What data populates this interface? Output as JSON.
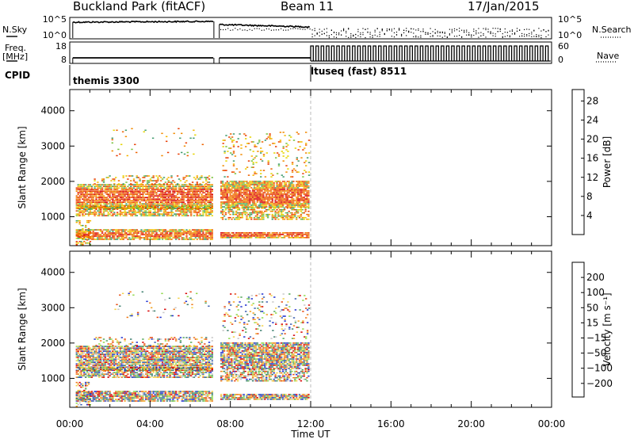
{
  "header": {
    "station": "Buckland Park (fitACF)",
    "beam": "Beam 11",
    "date": "17/Jan/2015"
  },
  "left_labels": {
    "nsky": "N.Sky",
    "freq_line1": "Freq.",
    "freq_line2": "[MHz]",
    "cpid": "CPID"
  },
  "right_labels": {
    "nsearch": "N.Search",
    "nave": "Nave"
  },
  "cpid_labels": [
    "themis 3300",
    "ltuseq (fast) 8511"
  ],
  "colors": {
    "power_scale": [
      "#1400e8",
      "#1e4fb4",
      "#2f7a8f",
      "#3d9a6a",
      "#77c13c",
      "#e6d400",
      "#f5b500",
      "#f28a00",
      "#ee6200",
      "#e83b00",
      "#d80000"
    ],
    "velocity_scale": [
      "#1f2fd0",
      "#3b5fb0",
      "#3d7f6f",
      "#55a85a",
      "#8fd84a",
      "#c8c8c8",
      "#f3d24a",
      "#f3a220",
      "#ef7a18",
      "#e84a10",
      "#d80000"
    ]
  },
  "chart_data": [
    {
      "type": "line",
      "panel": "noise",
      "series": [
        {
          "name": "N.Sky",
          "style": "solid"
        },
        {
          "name": "N.Search",
          "style": "dotted"
        }
      ],
      "y_ticks_left": [
        "10^5",
        "10^0"
      ],
      "y_ticks_right": [
        "10^5",
        "10^0"
      ]
    },
    {
      "type": "line",
      "panel": "frequency",
      "series": [
        {
          "name": "Freq.",
          "style": "solid"
        },
        {
          "name": "Nave",
          "style": "dotted"
        }
      ],
      "y_ticks_left": [
        "18",
        "8"
      ],
      "y_ticks_right": [
        "60",
        "0"
      ]
    },
    {
      "type": "heatmap",
      "panel": "power",
      "x_range_hours": [
        0,
        24
      ],
      "y_range_km": [
        180,
        4600
      ],
      "y_ticks": [
        "1000",
        "2000",
        "3000",
        "4000"
      ],
      "ylabel": "Slant Range [km]",
      "colorbar_label": "Power [dB]",
      "colorbar_ticks": [
        "4",
        "8",
        "12",
        "16",
        "20",
        "24",
        "28"
      ],
      "data_gap_hours": [
        7.2,
        7.4
      ],
      "data_end_hours": 12.0
    },
    {
      "type": "heatmap",
      "panel": "velocity",
      "x_range_hours": [
        0,
        24
      ],
      "y_range_km": [
        180,
        4600
      ],
      "y_ticks": [
        "1000",
        "2000",
        "3000",
        "4000"
      ],
      "ylabel": "Slant Range [km]",
      "colorbar_label": "Velocity [m s⁻¹]",
      "colorbar_ticks": [
        "200",
        "100",
        "50",
        "15",
        "−15",
        "−50",
        "−100",
        "−200"
      ],
      "x_ticks": [
        "00:00",
        "04:00",
        "08:00",
        "12:00",
        "16:00",
        "20:00",
        "00:00"
      ],
      "xlabel": "Time UT"
    }
  ]
}
